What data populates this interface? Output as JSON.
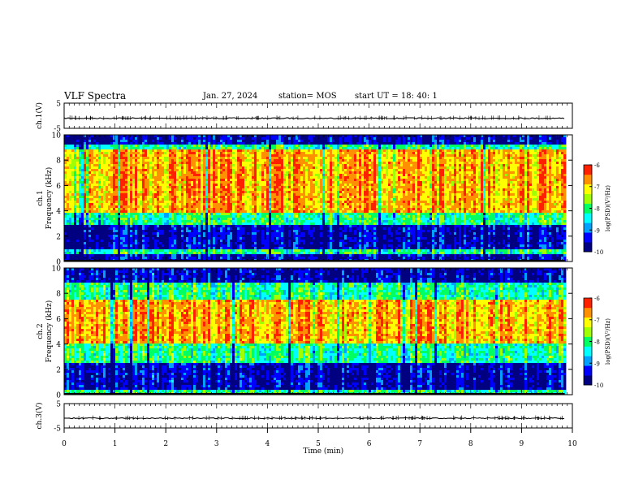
{
  "header": {
    "title": "VLF Spectra",
    "date": "Jan. 27, 2024",
    "station": "station= MOS",
    "start": "start UT =  18: 40: 1"
  },
  "chart_data": [
    {
      "type": "line",
      "panel": "ch1-waveform",
      "ylabel": "ch.1(V)",
      "ylim": [
        -5,
        5
      ],
      "yticks": [
        "5",
        "-5"
      ],
      "xlim": [
        0,
        10
      ],
      "series": [
        {
          "values_approx_constant": -1.0
        }
      ]
    },
    {
      "type": "heatmap",
      "panel": "ch1-spectrogram",
      "ylabel": "ch.1 Frequency (kHz)",
      "ylim": [
        0,
        10
      ],
      "yticks": [
        "0",
        "2",
        "4",
        "6",
        "8",
        "10"
      ],
      "xlim": [
        0,
        9.85
      ],
      "bands": [
        {
          "from": 0,
          "to": 0.5,
          "level": "low"
        },
        {
          "from": 0.5,
          "to": 1.0,
          "level": "mid"
        },
        {
          "from": 1.0,
          "to": 2.8,
          "level": "low"
        },
        {
          "from": 2.8,
          "to": 3.8,
          "level": "mid"
        },
        {
          "from": 3.8,
          "to": 8.8,
          "level": "high"
        },
        {
          "from": 8.8,
          "to": 9.3,
          "level": "mid"
        },
        {
          "from": 9.3,
          "to": 10,
          "level": "low"
        }
      ],
      "colorbar": {
        "label": "log(PSD)(V²/Hz)",
        "min": -10,
        "max": -6,
        "ticks": [
          "-6",
          "-7",
          "-8",
          "-9",
          "-10"
        ]
      }
    },
    {
      "type": "heatmap",
      "panel": "ch2-spectrogram",
      "ylabel": "ch.2 Frequency (kHz)",
      "ylim": [
        0,
        10
      ],
      "yticks": [
        "0",
        "2",
        "4",
        "6",
        "8",
        "10"
      ],
      "xlim": [
        0,
        9.85
      ],
      "bands": [
        {
          "from": 0,
          "to": 0.4,
          "level": "mid"
        },
        {
          "from": 0.4,
          "to": 2.5,
          "level": "low"
        },
        {
          "from": 2.5,
          "to": 4.0,
          "level": "mid"
        },
        {
          "from": 4.0,
          "to": 7.5,
          "level": "high"
        },
        {
          "from": 7.5,
          "to": 8.8,
          "level": "mid"
        },
        {
          "from": 8.8,
          "to": 10,
          "level": "low"
        }
      ],
      "colorbar": {
        "label": "log(PSD)(V²/Hz)",
        "min": -10,
        "max": -6,
        "ticks": [
          "-6",
          "-7",
          "-8",
          "-9",
          "-10"
        ]
      }
    },
    {
      "type": "line",
      "panel": "ch3-waveform",
      "ylabel": "ch.3(V)",
      "ylim": [
        -5,
        5
      ],
      "yticks": [
        "5",
        "-5"
      ],
      "xlim": [
        0,
        10
      ],
      "series": [
        {
          "values_approx_constant": -1.0
        }
      ]
    }
  ],
  "xaxis": {
    "label": "Time (min)",
    "ticks": [
      "0",
      "1",
      "2",
      "3",
      "4",
      "5",
      "6",
      "7",
      "8",
      "9",
      "10"
    ]
  },
  "colors": {
    "scale": [
      "#000080",
      "#0000ff",
      "#00a0ff",
      "#00ffff",
      "#00ff60",
      "#a0ff00",
      "#ffff00",
      "#ff9000",
      "#ff2000"
    ]
  }
}
